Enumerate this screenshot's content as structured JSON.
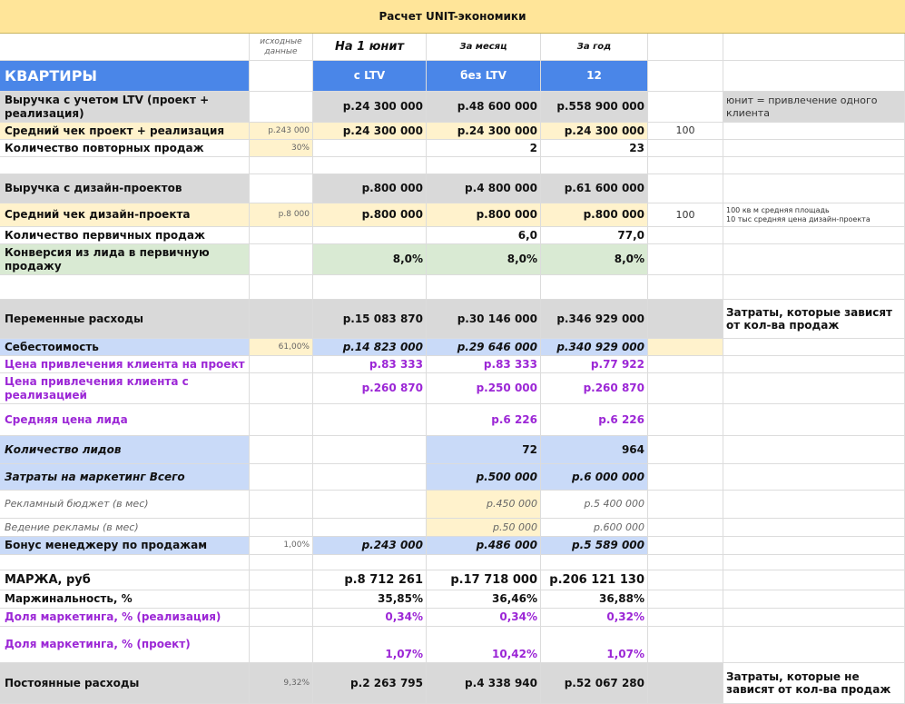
{
  "title": "Расчет UNIT-экономики",
  "table": {
    "rows": [
      [
        null,
        "исходные данные",
        "На 1 юнит",
        "За месяц",
        "За год",
        null,
        null
      ],
      [
        "КВАРТИРЫ",
        null,
        "с LTV",
        "без LTV",
        "12",
        null,
        null
      ],
      [
        "Выручка с учетом LTV (проект + реализация)",
        null,
        "р.24 300 000",
        "р.48 600 000",
        "р.558 900 000",
        null,
        "юнит = привлечение одного клиента"
      ],
      [
        "Средний чек проект + реализация",
        "р.243 000",
        "р.24 300 000",
        "р.24 300 000",
        "р.24 300 000",
        "100",
        null
      ],
      [
        "Количество повторных продаж",
        "30%",
        null,
        "2",
        "23",
        null,
        null
      ],
      [
        null,
        null,
        null,
        null,
        null,
        null,
        null
      ],
      [
        "Выручка с дизайн-проектов",
        null,
        "р.800 000",
        "р.4 800 000",
        "р.61 600 000",
        null,
        null
      ],
      [
        "Средний чек дизайн-проекта",
        "р.8 000",
        "р.800 000",
        "р.800 000",
        "р.800 000",
        "100",
        "100 кв м средняя площадь\n10 тыс средняя цена дизайн-проекта"
      ],
      [
        "Количество первичных продаж",
        null,
        null,
        "6,0",
        "77,0",
        null,
        null
      ],
      [
        "Конверсия из лида в первичную продажу",
        null,
        "8,0%",
        "8,0%",
        "8,0%",
        null,
        null
      ],
      [
        null,
        null,
        null,
        null,
        null,
        null,
        null
      ],
      [
        "Переменные расходы",
        null,
        "р.15 083 870",
        "р.30 146 000",
        "р.346 929 000",
        null,
        "Затраты, которые зависят от кол-ва продаж"
      ],
      [
        "Себестоимость",
        "61,00%",
        "р.14 823 000",
        "р.29 646 000",
        "р.340 929 000",
        null,
        null
      ],
      [
        "Цена привлечения клиента на проект",
        null,
        "р.83 333",
        "р.83 333",
        "р.77 922",
        null,
        null
      ],
      [
        "Цена привлечения клиента с реализацией",
        null,
        "р.260 870",
        "р.250 000",
        "р.260 870",
        null,
        null
      ],
      [
        "Средняя цена лида",
        null,
        null,
        "р.6 226",
        "р.6 226",
        null,
        null
      ],
      [
        "Количество лидов",
        null,
        null,
        "72",
        "964",
        null,
        null
      ],
      [
        "Затраты на маркетинг Всего",
        null,
        null,
        "р.500 000",
        "р.6 000 000",
        null,
        null
      ],
      [
        "Рекламный бюджет (в мес)",
        null,
        null,
        "р.450 000",
        "р.5 400 000",
        null,
        null
      ],
      [
        "Ведение рекламы (в мес)",
        null,
        null,
        "р.50 000",
        "р.600 000",
        null,
        null
      ],
      [
        "Бонус менеджеру по продажам",
        "1,00%",
        "р.243 000",
        "р.486 000",
        "р.5 589 000",
        null,
        null
      ],
      [
        null,
        null,
        null,
        null,
        null,
        null,
        null
      ],
      [
        "МАРЖА, руб",
        null,
        "р.8 712 261",
        "р.17 718 000",
        "р.206 121 130",
        null,
        null
      ],
      [
        "Маржинальность, %",
        null,
        "35,85%",
        "36,46%",
        "36,88%",
        null,
        null
      ],
      [
        "Доля маркетинга, % (реализация)",
        null,
        "0,34%",
        "0,34%",
        "0,32%",
        null,
        null
      ],
      [
        "Доля маркетинга, % (проект)",
        null,
        "1,07%",
        "10,42%",
        "1,07%",
        null,
        null
      ],
      [
        "Постоянные расходы",
        "9,32%",
        "р.2 263 795",
        "р.4 338 940",
        "р.52 067 280",
        null,
        "Затраты, которые не зависят от кол-ва продаж"
      ]
    ]
  }
}
